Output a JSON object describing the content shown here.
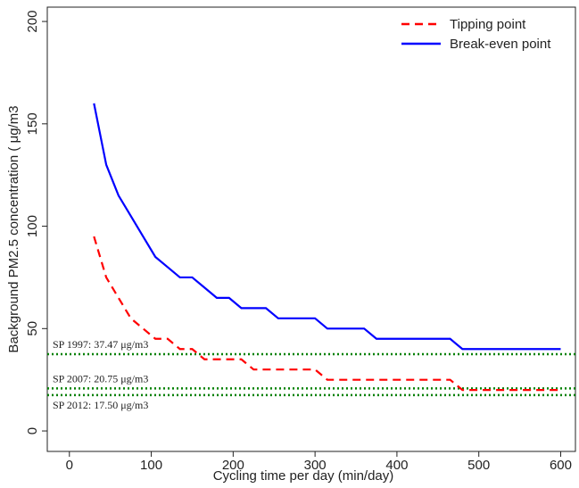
{
  "chart_data": {
    "type": "line",
    "x_label": "Cycling time per day (min/day)",
    "y_label": "Background PM2.5 concentration ( μg/m3",
    "xlim": [
      -27,
      618
    ],
    "xticks": [
      0,
      100,
      200,
      300,
      400,
      500,
      600
    ],
    "ylim": [
      -10,
      207
    ],
    "yticks": [
      0,
      50,
      100,
      150,
      200
    ],
    "legend": "top-right",
    "series": [
      {
        "name": "Tipping point",
        "color": "#ff0000",
        "dash": true,
        "x": [
          30,
          45,
          60,
          75,
          90,
          105,
          120,
          135,
          150,
          165,
          210,
          225,
          300,
          315,
          465,
          480,
          600
        ],
        "values": [
          95,
          75,
          65,
          55,
          50,
          45,
          45,
          40,
          40,
          35,
          35,
          30,
          30,
          25,
          25,
          20,
          20
        ]
      },
      {
        "name": "Break-even point",
        "color": "#0000ff",
        "dash": false,
        "x": [
          30,
          45,
          60,
          75,
          90,
          105,
          120,
          135,
          150,
          165,
          180,
          195,
          210,
          240,
          255,
          300,
          315,
          360,
          375,
          465,
          480,
          600
        ],
        "values": [
          160,
          130,
          115,
          105,
          95,
          85,
          80,
          75,
          75,
          70,
          65,
          65,
          60,
          60,
          55,
          55,
          50,
          50,
          45,
          45,
          40,
          40
        ]
      }
    ],
    "reference_lines": [
      {
        "label": "SP 1997: 37.47 μg/m3",
        "value": 37.47,
        "color": "#008000"
      },
      {
        "label": "SP 2007: 20.75 μg/m3",
        "value": 20.75,
        "color": "#008000"
      },
      {
        "label": "SP 2012: 17.50 μg/m3",
        "value": 17.5,
        "color": "#008000"
      }
    ]
  }
}
